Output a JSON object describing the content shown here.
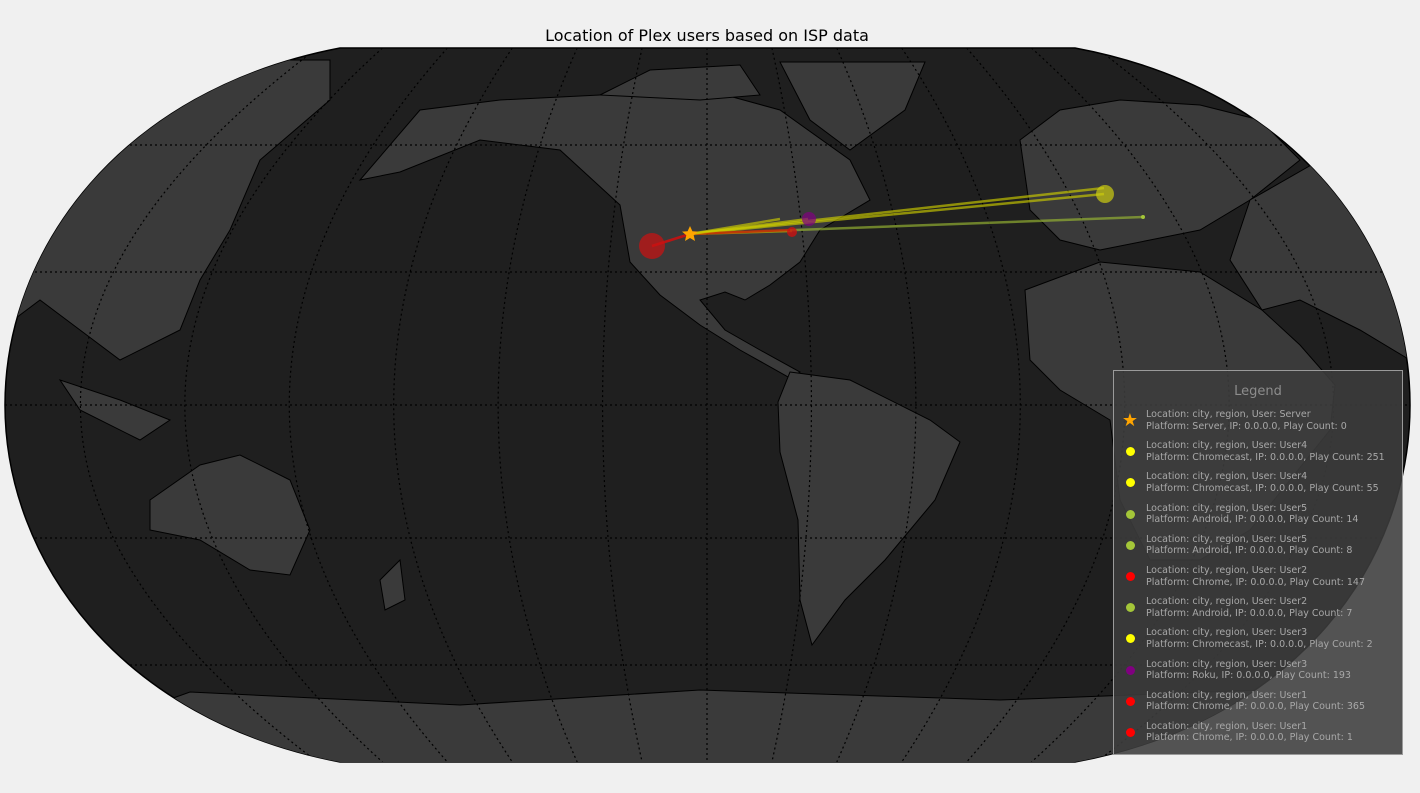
{
  "title": "Location of Plex users based on ISP data",
  "colors": {
    "ocean": "#1f1f1f",
    "land": "#3a3a3a",
    "background": "#f0f0f0",
    "server": "#ffa500"
  },
  "legend": {
    "title": "Legend",
    "entries": [
      {
        "marker": "star",
        "color": "#ffa500",
        "line1": "Location: city, region,  User: Server",
        "line2": "Platform: Server, IP: 0.0.0.0, Play Count: 0"
      },
      {
        "marker": "dot",
        "color": "#ffff00",
        "line1": "Location: city, region,  User: User4",
        "line2": "Platform: Chromecast, IP: 0.0.0.0, Play Count: 251"
      },
      {
        "marker": "dot",
        "color": "#ffff00",
        "line1": "Location: city, region,  User: User4",
        "line2": "Platform: Chromecast, IP: 0.0.0.0, Play Count: 55"
      },
      {
        "marker": "dot",
        "color": "#a4c639",
        "line1": "Location: city, region,  User: User5",
        "line2": "Platform: Android, IP: 0.0.0.0, Play Count: 14"
      },
      {
        "marker": "dot",
        "color": "#a4c639",
        "line1": "Location: city, region,  User: User5",
        "line2": "Platform: Android, IP: 0.0.0.0, Play Count: 8"
      },
      {
        "marker": "dot",
        "color": "#ff0000",
        "line1": "Location: city, region,  User: User2",
        "line2": "Platform: Chrome, IP: 0.0.0.0, Play Count: 147"
      },
      {
        "marker": "dot",
        "color": "#a4c639",
        "line1": "Location: city, region,  User: User2",
        "line2": "Platform: Android, IP: 0.0.0.0, Play Count: 7"
      },
      {
        "marker": "dot",
        "color": "#ffff00",
        "line1": "Location: city, region,  User: User3",
        "line2": "Platform: Chromecast, IP: 0.0.0.0, Play Count: 2"
      },
      {
        "marker": "dot",
        "color": "#800080",
        "line1": "Location: city, region,  User: User3",
        "line2": "Platform: Roku, IP: 0.0.0.0, Play Count: 193"
      },
      {
        "marker": "dot",
        "color": "#ff0000",
        "line1": "Location: city, region,  User: User1",
        "line2": "Platform: Chrome, IP: 0.0.0.0, Play Count: 365"
      },
      {
        "marker": "dot",
        "color": "#ff0000",
        "line1": "Location: city, region,  User: User1",
        "line2": "Platform: Chrome, IP: 0.0.0.0, Play Count: 1"
      }
    ]
  }
}
